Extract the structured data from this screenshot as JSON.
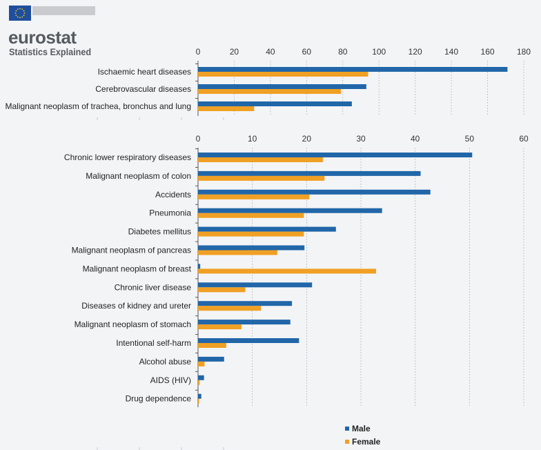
{
  "header": {
    "brand": "eurostat",
    "subtitle": "Statistics Explained"
  },
  "colors": {
    "male": "#2166a8",
    "female": "#f0a024",
    "flag": "#1f4e9c",
    "star": "#f6d21d"
  },
  "legend": {
    "male": "Male",
    "female": "Female"
  },
  "chart_data": [
    {
      "type": "bar",
      "orientation": "horizontal",
      "categories": [
        "Ischaemic heart diseases",
        "Cerebrovascular diseases",
        "Malignant neoplasm of trachea, bronchus and lung"
      ],
      "series": [
        {
          "name": "Male",
          "values": [
            171,
            93,
            85
          ]
        },
        {
          "name": "Female",
          "values": [
            94,
            79,
            31
          ]
        }
      ],
      "xlim": [
        0,
        180
      ],
      "xticks": [
        0,
        20,
        40,
        60,
        80,
        100,
        120,
        140,
        160,
        180
      ],
      "grid": true
    },
    {
      "type": "bar",
      "orientation": "horizontal",
      "categories": [
        "Chronic lower respiratory diseases",
        "Malignant neoplasm of colon",
        "Accidents",
        "Pneumonia",
        "Diabetes mellitus",
        "Malignant neoplasm of pancreas",
        "Malignant neoplasm of breast",
        "Chronic liver disease",
        "Diseases of kidney and ureter",
        "Malignant neoplasm of stomach",
        "Intentional self-harm",
        "Alcohol abuse",
        "AIDS (HIV)",
        "Drug dependence"
      ],
      "series": [
        {
          "name": "Male",
          "values": [
            50.5,
            41,
            42.8,
            33.9,
            25.4,
            19.6,
            0.4,
            21,
            17.3,
            17,
            18.6,
            4.8,
            1.1,
            0.6
          ]
        },
        {
          "name": "Female",
          "values": [
            23,
            23.3,
            20.5,
            19.5,
            19.5,
            14.6,
            32.8,
            8.7,
            11.6,
            8,
            5.2,
            1.2,
            0.3,
            0.2
          ]
        }
      ],
      "xlim": [
        0,
        60
      ],
      "xticks": [
        0,
        10,
        20,
        30,
        40,
        50,
        60
      ],
      "grid": true
    }
  ]
}
